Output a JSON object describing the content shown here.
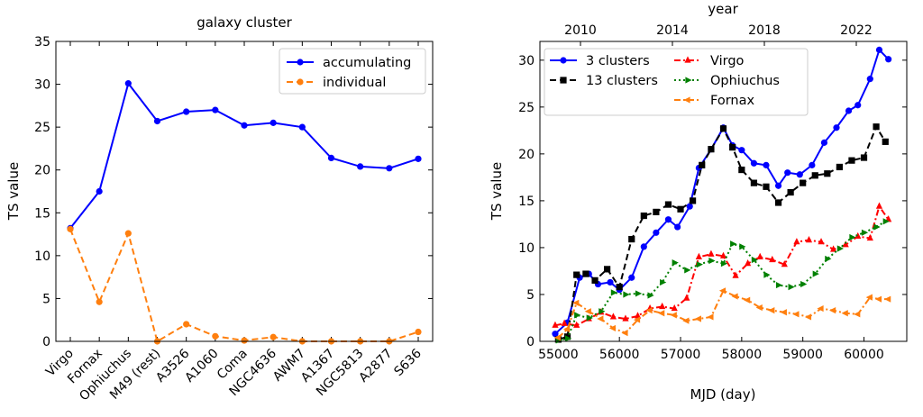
{
  "chart_data": [
    {
      "type": "line",
      "title": "galaxy cluster",
      "xlabel": "",
      "ylabel": "TS value",
      "ylim": [
        0,
        35
      ],
      "yticks": [
        0,
        5,
        10,
        15,
        20,
        25,
        30,
        35
      ],
      "categories": [
        "Virgo",
        "Fornax",
        "Ophiuchus",
        "M49 (rest)",
        "A3526",
        "A1060",
        "Coma",
        "NGC4636",
        "AWM7",
        "A1367",
        "NGC5813",
        "A2877",
        "S636"
      ],
      "legend_position": "top-right",
      "series": [
        {
          "name": "accumulating",
          "color": "#0000ff",
          "style": "solid",
          "marker": "circle",
          "values": [
            13.2,
            17.5,
            30.1,
            25.7,
            26.8,
            27.0,
            25.2,
            25.5,
            25.0,
            21.4,
            20.4,
            20.2,
            21.3
          ]
        },
        {
          "name": "individual",
          "color": "#ff7f0e",
          "style": "dashed",
          "marker": "circle",
          "values": [
            13.1,
            4.6,
            12.6,
            0.0,
            2.0,
            0.6,
            0.1,
            0.5,
            0.0,
            0.0,
            0.0,
            0.0,
            1.1
          ]
        }
      ]
    },
    {
      "type": "line",
      "title": "year",
      "xlabel": "MJD (day)",
      "ylabel": "TS value",
      "xlim": [
        54700,
        60700
      ],
      "ylim": [
        0,
        32
      ],
      "xticks": [
        55000,
        56000,
        57000,
        58000,
        59000,
        60000
      ],
      "yticks": [
        0,
        5,
        10,
        15,
        20,
        25,
        30
      ],
      "top_axis_ticks": [
        "2010",
        "2014",
        "2018",
        "2022"
      ],
      "legend_position": "top-left",
      "series": [
        {
          "name": "3 clusters",
          "color": "#0000ff",
          "style": "solid",
          "marker": "circle",
          "x": [
            54950,
            55150,
            55350,
            55500,
            55650,
            55850,
            56000,
            56200,
            56400,
            56600,
            56800,
            56950,
            57150,
            57300,
            57500,
            57700,
            57850,
            58000,
            58200,
            58400,
            58600,
            58750,
            58950,
            59150,
            59350,
            59550,
            59750,
            59900,
            60100,
            60250,
            60400
          ],
          "y": [
            0.8,
            2.0,
            6.8,
            7.2,
            6.1,
            6.3,
            5.5,
            6.8,
            10.1,
            11.6,
            13.0,
            12.2,
            14.4,
            18.5,
            20.5,
            22.8,
            20.9,
            20.4,
            19.0,
            18.8,
            16.6,
            18.0,
            17.8,
            18.8,
            21.2,
            22.8,
            24.6,
            25.2,
            28.0,
            31.1,
            30.1
          ]
        },
        {
          "name": "13 clusters",
          "color": "#000000",
          "style": "dashed",
          "marker": "square",
          "x": [
            55000,
            55150,
            55300,
            55450,
            55600,
            55800,
            56000,
            56200,
            56400,
            56600,
            56800,
            57000,
            57200,
            57350,
            57500,
            57700,
            57850,
            58000,
            58200,
            58400,
            58600,
            58800,
            59000,
            59200,
            59400,
            59600,
            59800,
            60000,
            60200,
            60350
          ],
          "y": [
            0.2,
            0.5,
            7.1,
            7.2,
            6.5,
            7.7,
            5.8,
            10.9,
            13.4,
            13.8,
            14.6,
            14.1,
            15.0,
            18.8,
            20.5,
            22.7,
            20.7,
            18.3,
            16.9,
            16.5,
            14.8,
            15.9,
            16.9,
            17.7,
            17.9,
            18.6,
            19.3,
            19.6,
            22.9,
            21.3
          ]
        },
        {
          "name": "Virgo",
          "color": "#ff0000",
          "style": "dashdot",
          "marker": "triangle-up",
          "x": [
            54950,
            55100,
            55300,
            55500,
            55700,
            55900,
            56100,
            56300,
            56500,
            56700,
            56900,
            57100,
            57300,
            57500,
            57700,
            57900,
            58100,
            58300,
            58500,
            58700,
            58900,
            59100,
            59300,
            59500,
            59700,
            59900,
            60100,
            60250,
            60400
          ],
          "y": [
            1.7,
            1.9,
            1.7,
            2.4,
            3.1,
            2.6,
            2.4,
            2.7,
            3.5,
            3.7,
            3.5,
            4.6,
            9.0,
            9.3,
            9.1,
            7.0,
            8.3,
            9.0,
            8.7,
            8.2,
            10.6,
            10.8,
            10.6,
            9.8,
            10.3,
            11.2,
            11.0,
            14.4,
            13.0
          ]
        },
        {
          "name": "Ophiuchus",
          "color": "#008000",
          "style": "dotted",
          "marker": "triangle-right",
          "x": [
            55000,
            55150,
            55300,
            55500,
            55700,
            55900,
            56100,
            56300,
            56500,
            56700,
            56900,
            57100,
            57300,
            57500,
            57700,
            57850,
            58000,
            58200,
            58400,
            58600,
            58800,
            59000,
            59200,
            59400,
            59600,
            59800,
            60000,
            60200,
            60350
          ],
          "y": [
            0.1,
            0.3,
            2.8,
            2.5,
            3.2,
            5.2,
            5.0,
            5.1,
            4.9,
            6.3,
            8.4,
            7.6,
            8.2,
            8.6,
            8.3,
            10.4,
            10.1,
            8.7,
            7.1,
            6.0,
            5.8,
            6.1,
            7.2,
            8.8,
            9.9,
            11.1,
            11.6,
            12.2,
            12.8
          ]
        },
        {
          "name": "Fornax",
          "color": "#ff7f0e",
          "style": "dashdot",
          "marker": "triangle-left",
          "x": [
            55000,
            55150,
            55300,
            55500,
            55700,
            55900,
            56100,
            56300,
            56500,
            56700,
            56900,
            57100,
            57300,
            57500,
            57700,
            57900,
            58100,
            58300,
            58500,
            58700,
            58900,
            59100,
            59300,
            59500,
            59700,
            59900,
            60100,
            60250,
            60400
          ],
          "y": [
            0.4,
            1.3,
            4.1,
            3.2,
            2.4,
            1.4,
            0.9,
            2.3,
            3.3,
            3.0,
            2.8,
            2.2,
            2.4,
            2.6,
            5.4,
            4.8,
            4.4,
            3.6,
            3.3,
            3.1,
            2.9,
            2.6,
            3.5,
            3.3,
            3.0,
            2.9,
            4.7,
            4.5,
            4.5
          ]
        }
      ]
    }
  ]
}
